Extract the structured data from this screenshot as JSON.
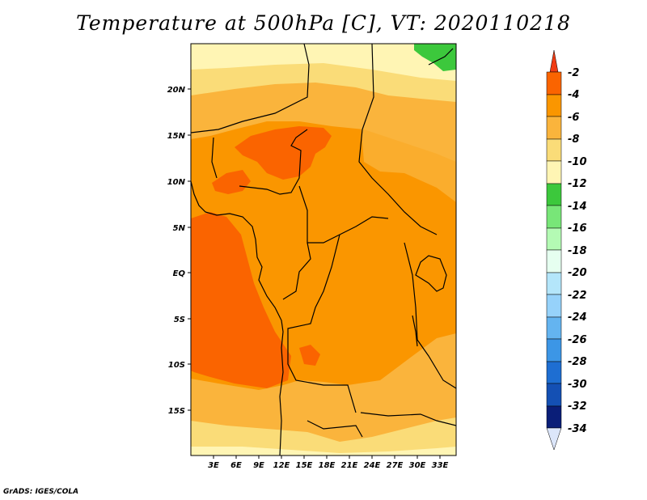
{
  "title": "Temperature at 500hPa [C], VT: 2020110218",
  "credit": "GrADS: IGES/COLA",
  "map": {
    "lat_labels": [
      "20N",
      "15N",
      "10N",
      "5N",
      "EQ",
      "5S",
      "10S",
      "15S"
    ],
    "lon_labels": [
      "3E",
      "6E",
      "9E",
      "12E",
      "15E",
      "18E",
      "21E",
      "24E",
      "27E",
      "30E",
      "33E"
    ]
  },
  "colorbar": {
    "labels": [
      "-2",
      "-4",
      "-6",
      "-8",
      "-10",
      "-12",
      "-14",
      "-16",
      "-18",
      "-20",
      "-22",
      "-24",
      "-26",
      "-28",
      "-30",
      "-32",
      "-34"
    ],
    "colors": {
      "above_-2": "#f03c14",
      "-2_-4": "#fa6400",
      "-4_-6": "#fa9600",
      "-6_-8": "#fab43c",
      "-8_-10": "#fadc78",
      "-10_-12": "#fff5b4",
      "-12_-14": "#3cc83c",
      "-14_-16": "#78e678",
      "-16_-18": "#b4fab4",
      "-18_-20": "#e6fff0",
      "-20_-22": "#b4e6fa",
      "-22_-24": "#96d2fa",
      "-24_-26": "#64b4f0",
      "-26_-28": "#3c96e6",
      "-28_-30": "#1e6ed2",
      "-30_-32": "#1450b4",
      "-32_-34": "#0a1e78",
      "below_-34": "#dce6fa"
    }
  }
}
